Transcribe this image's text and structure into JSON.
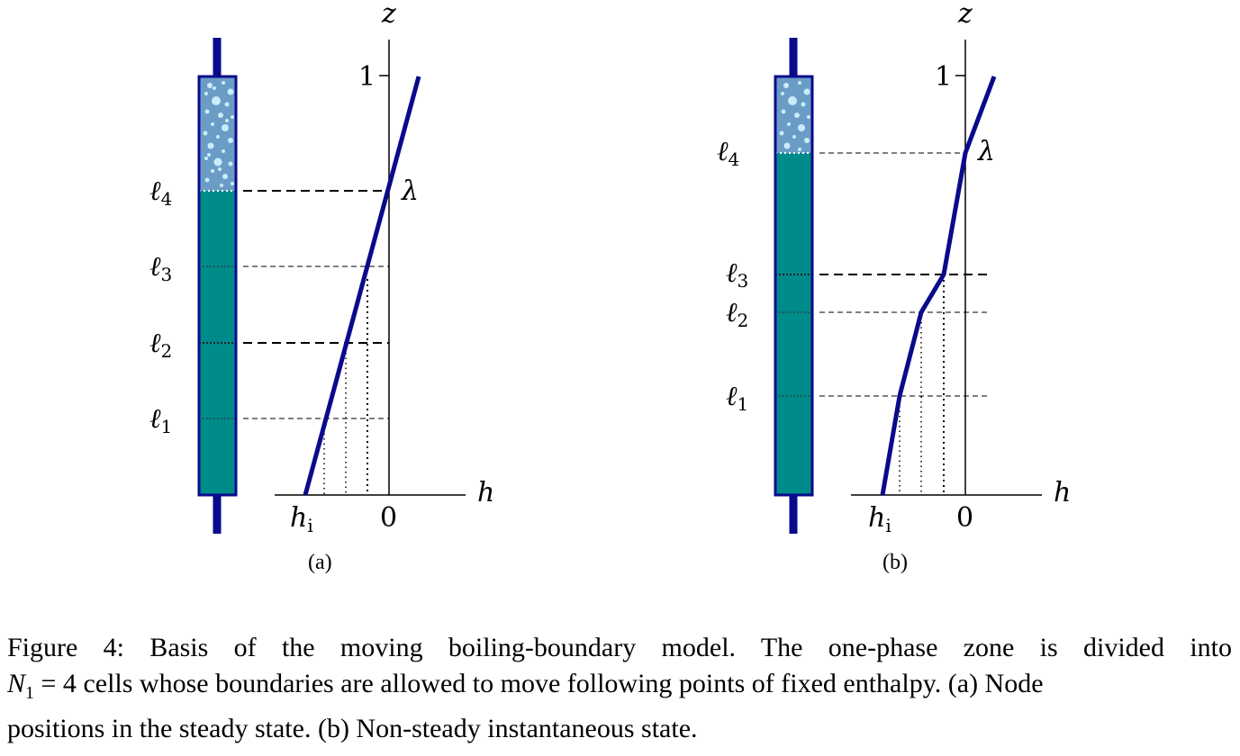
{
  "figure": {
    "axis_z": "z",
    "axis_h": "h",
    "tick_one": "1",
    "tick_zero": "0",
    "h_i": "h",
    "h_i_sub": "i",
    "lambda": "λ",
    "ell": "ℓ",
    "ell_subs": [
      "1",
      "2",
      "3",
      "4"
    ],
    "panel_a_label": "(a)",
    "panel_b_label": "(b)",
    "colors": {
      "line": "#0a0a8c",
      "liquid": "#008b8b",
      "vapor": "#6a9cc6",
      "bubble": "#c9ecfa"
    }
  },
  "caption": {
    "line1": "Figure 4:   Basis of the moving boiling-boundary model.  The one-phase zone is divided into",
    "line2_var": "N",
    "line2_sub": "1",
    "line2_eq": " = 4",
    "line2_rest": " cells whose boundaries are allowed to move following points of fixed enthalpy. (a) Node",
    "line3": "positions in the steady state. (b) Non-steady instantaneous state."
  }
}
